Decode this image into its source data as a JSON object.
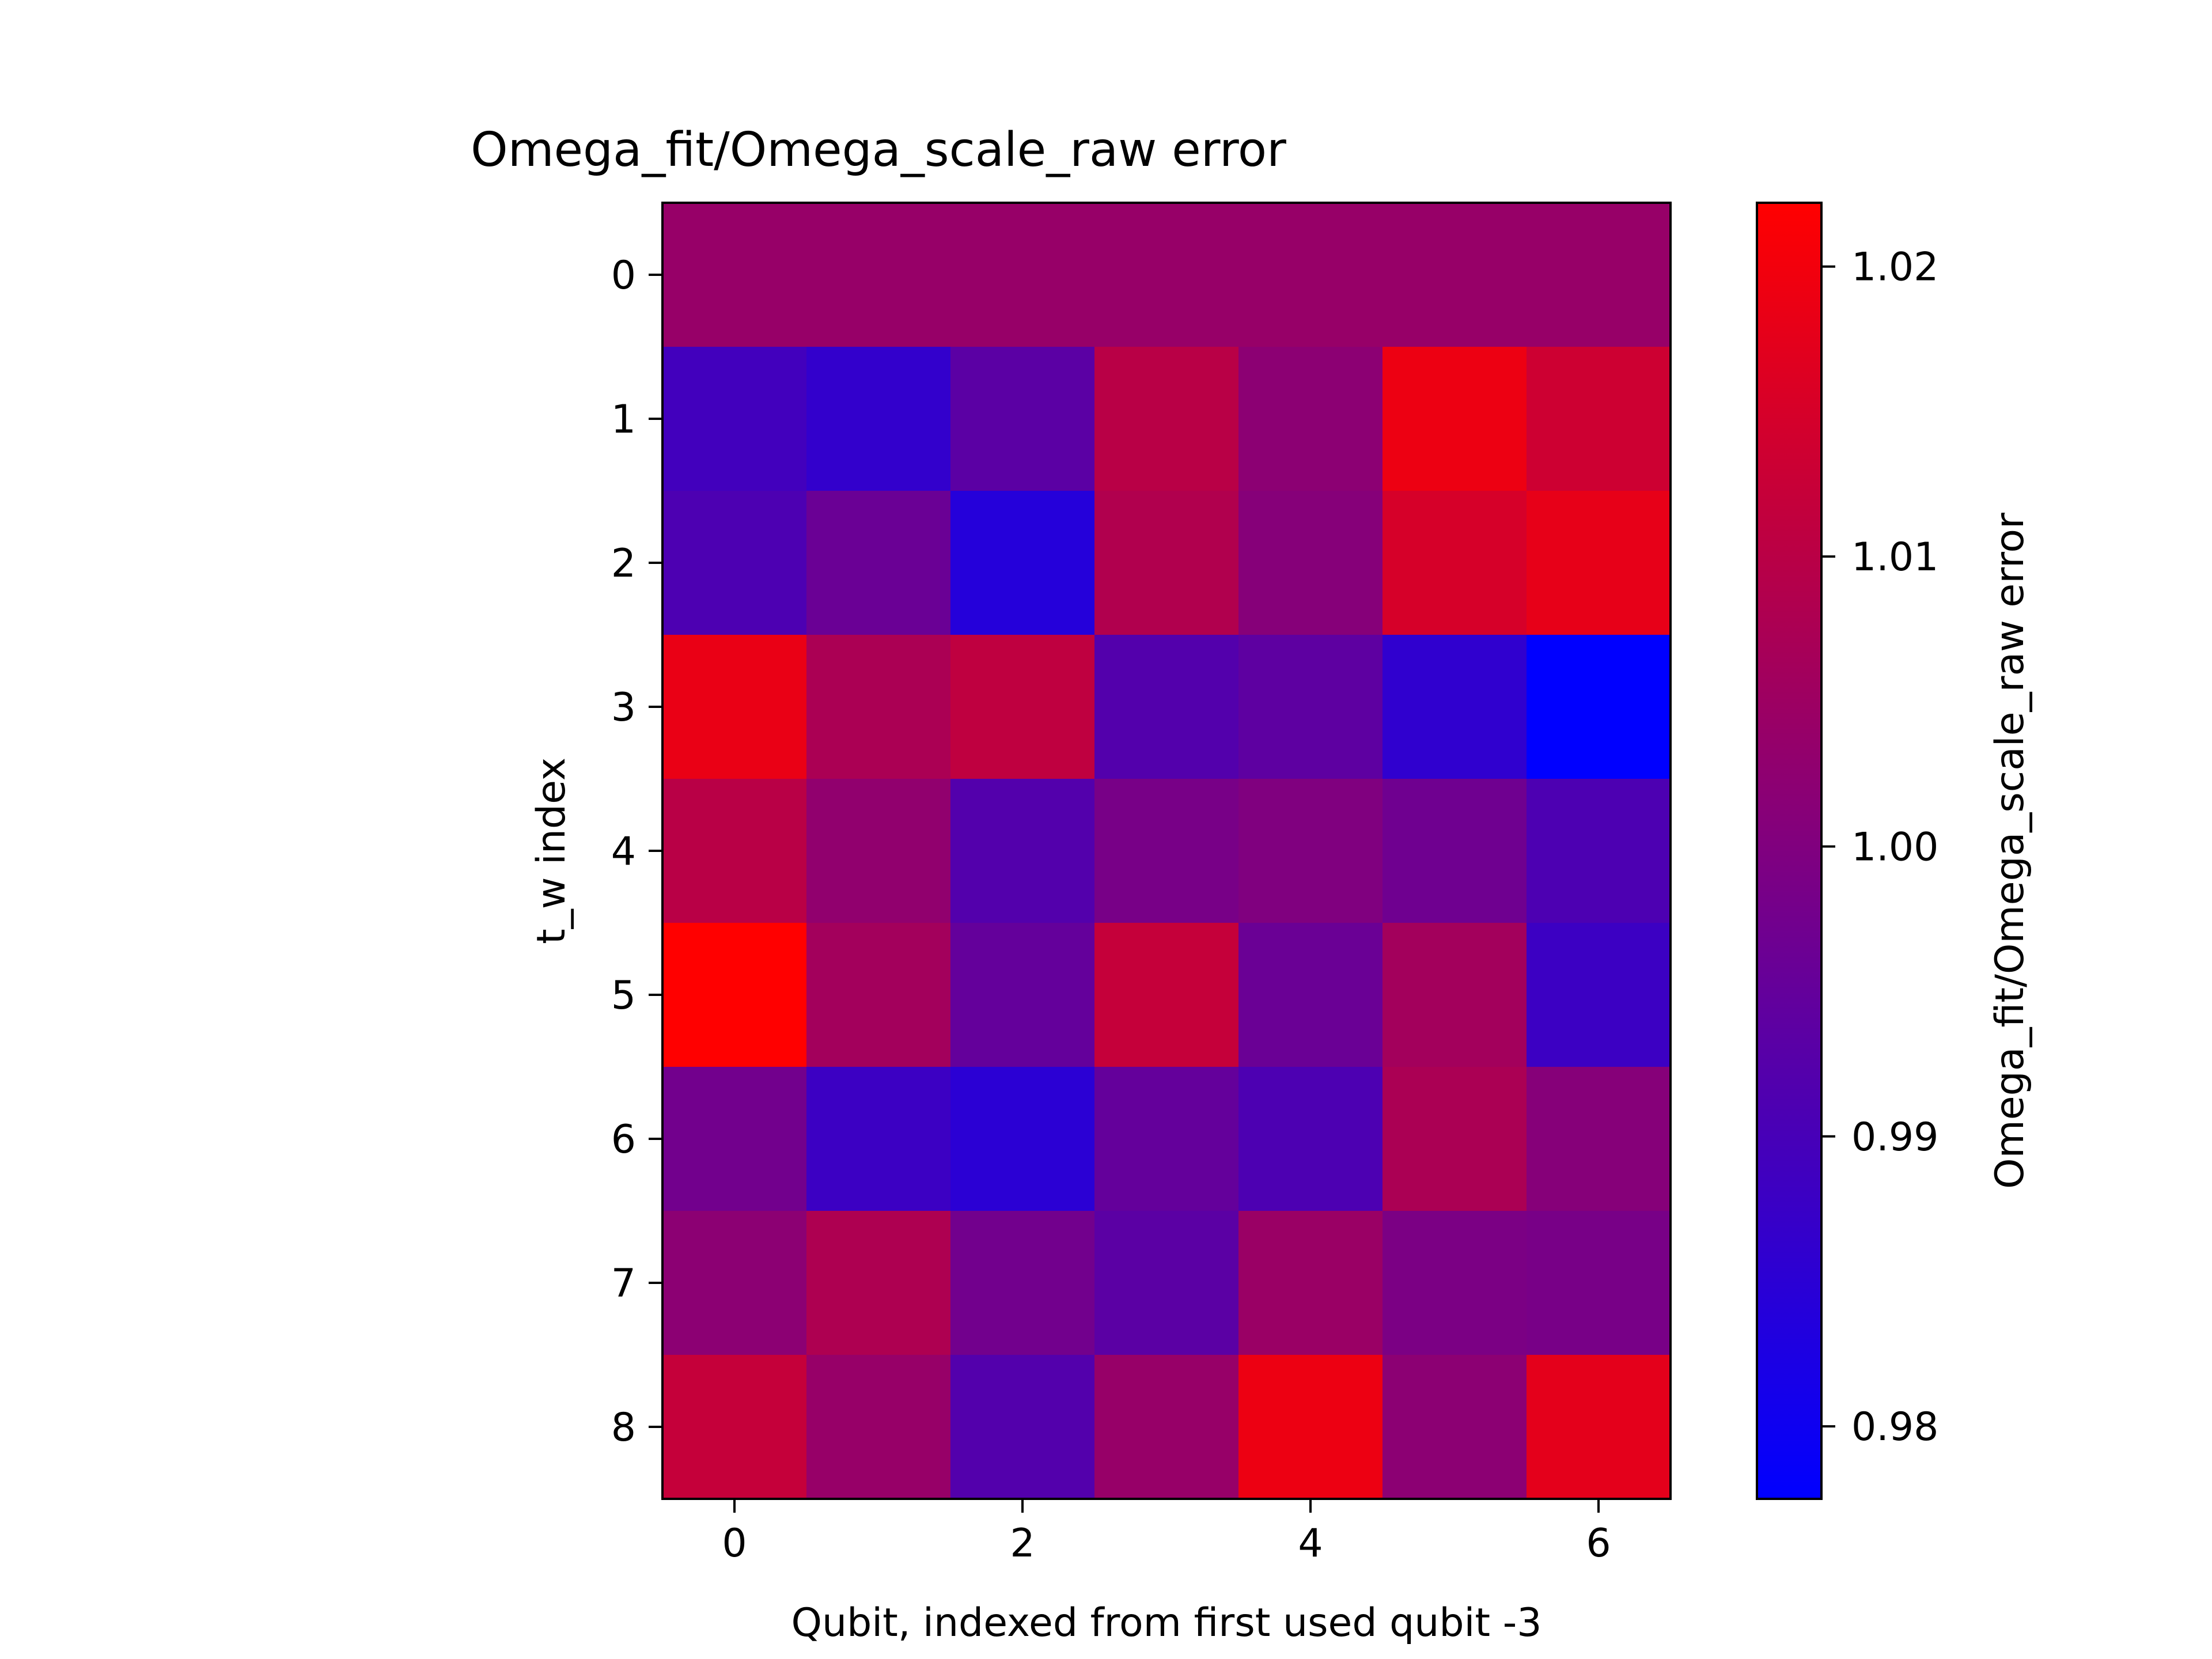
{
  "chart_data": {
    "type": "heatmap",
    "title": "Omega_fit/Omega_scale_raw error",
    "xlabel": "Qubit, indexed from first used qubit -3",
    "ylabel": "t_w index",
    "colorbar_label": "Omega_fit/Omega_scale_raw error",
    "x_ticks": [
      "0",
      "2",
      "4",
      "6"
    ],
    "x_tick_values": [
      0,
      2,
      4,
      6
    ],
    "y_ticks": [
      "0",
      "1",
      "2",
      "3",
      "4",
      "5",
      "6",
      "7",
      "8"
    ],
    "y_tick_values": [
      0,
      1,
      2,
      3,
      4,
      5,
      6,
      7,
      8
    ],
    "colorbar_ticks": [
      "0.98",
      "0.99",
      "1.00",
      "1.01",
      "1.02"
    ],
    "colorbar_tick_values": [
      0.98,
      0.99,
      1.0,
      1.01,
      1.02
    ],
    "vmin": 0.9775,
    "vmax": 1.0222,
    "colormap": {
      "low": "#0000ff",
      "high": "#ff0000"
    },
    "columns": 7,
    "rows": 9,
    "values": [
      [
        1.004,
        1.004,
        1.004,
        1.004,
        1.004,
        1.004,
        1.004
      ],
      [
        0.989,
        0.9865,
        0.9935,
        1.01,
        1.002,
        1.019,
        1.0135
      ],
      [
        0.991,
        0.996,
        0.984,
        1.0085,
        1.001,
        1.015,
        1.018
      ],
      [
        1.0185,
        1.0075,
        1.011,
        0.992,
        0.994,
        0.986,
        0.9775
      ],
      [
        1.01,
        1.003,
        0.992,
        0.9985,
        1.0,
        0.997,
        0.991
      ],
      [
        1.0222,
        1.006,
        0.995,
        1.012,
        0.996,
        1.006,
        0.988
      ],
      [
        0.9975,
        0.988,
        0.985,
        0.995,
        0.991,
        1.0075,
        1.001
      ],
      [
        1.002,
        1.008,
        0.9975,
        0.9935,
        1.0045,
        0.999,
        0.9985
      ],
      [
        1.012,
        1.004,
        0.992,
        1.004,
        1.019,
        1.002,
        1.0175
      ]
    ]
  }
}
